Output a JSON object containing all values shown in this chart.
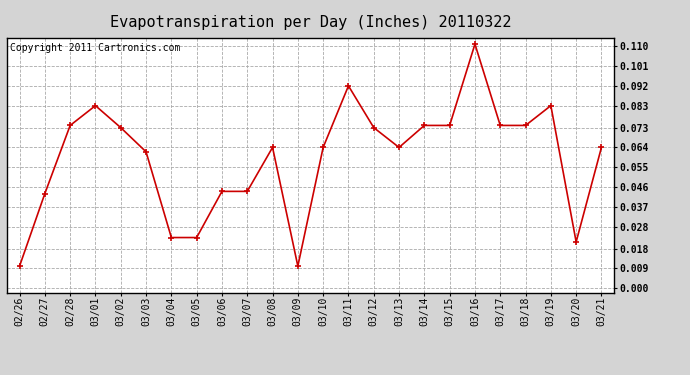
{
  "title": "Evapotranspiration per Day (Inches) 20110322",
  "copyright": "Copyright 2011 Cartronics.com",
  "dates": [
    "02/26",
    "02/27",
    "02/28",
    "03/01",
    "03/02",
    "03/03",
    "03/04",
    "03/05",
    "03/06",
    "03/07",
    "03/08",
    "03/09",
    "03/10",
    "03/11",
    "03/12",
    "03/13",
    "03/14",
    "03/15",
    "03/16",
    "03/17",
    "03/18",
    "03/19",
    "03/20",
    "03/21"
  ],
  "values": [
    0.01,
    0.043,
    0.074,
    0.083,
    0.073,
    0.062,
    0.023,
    0.023,
    0.044,
    0.044,
    0.064,
    0.01,
    0.064,
    0.092,
    0.073,
    0.064,
    0.074,
    0.074,
    0.111,
    0.074,
    0.074,
    0.083,
    0.021,
    0.064
  ],
  "line_color": "#cc0000",
  "marker_color": "#cc0000",
  "bg_color": "#d4d4d4",
  "plot_bg_color": "#ffffff",
  "grid_color": "#aaaaaa",
  "yticks": [
    0.0,
    0.009,
    0.018,
    0.028,
    0.037,
    0.046,
    0.055,
    0.064,
    0.073,
    0.083,
    0.092,
    0.101,
    0.11
  ],
  "ylim_min": -0.002,
  "ylim_max": 0.114,
  "title_fontsize": 11,
  "copyright_fontsize": 7,
  "tick_fontsize": 7,
  "ytick_fontsize": 7
}
